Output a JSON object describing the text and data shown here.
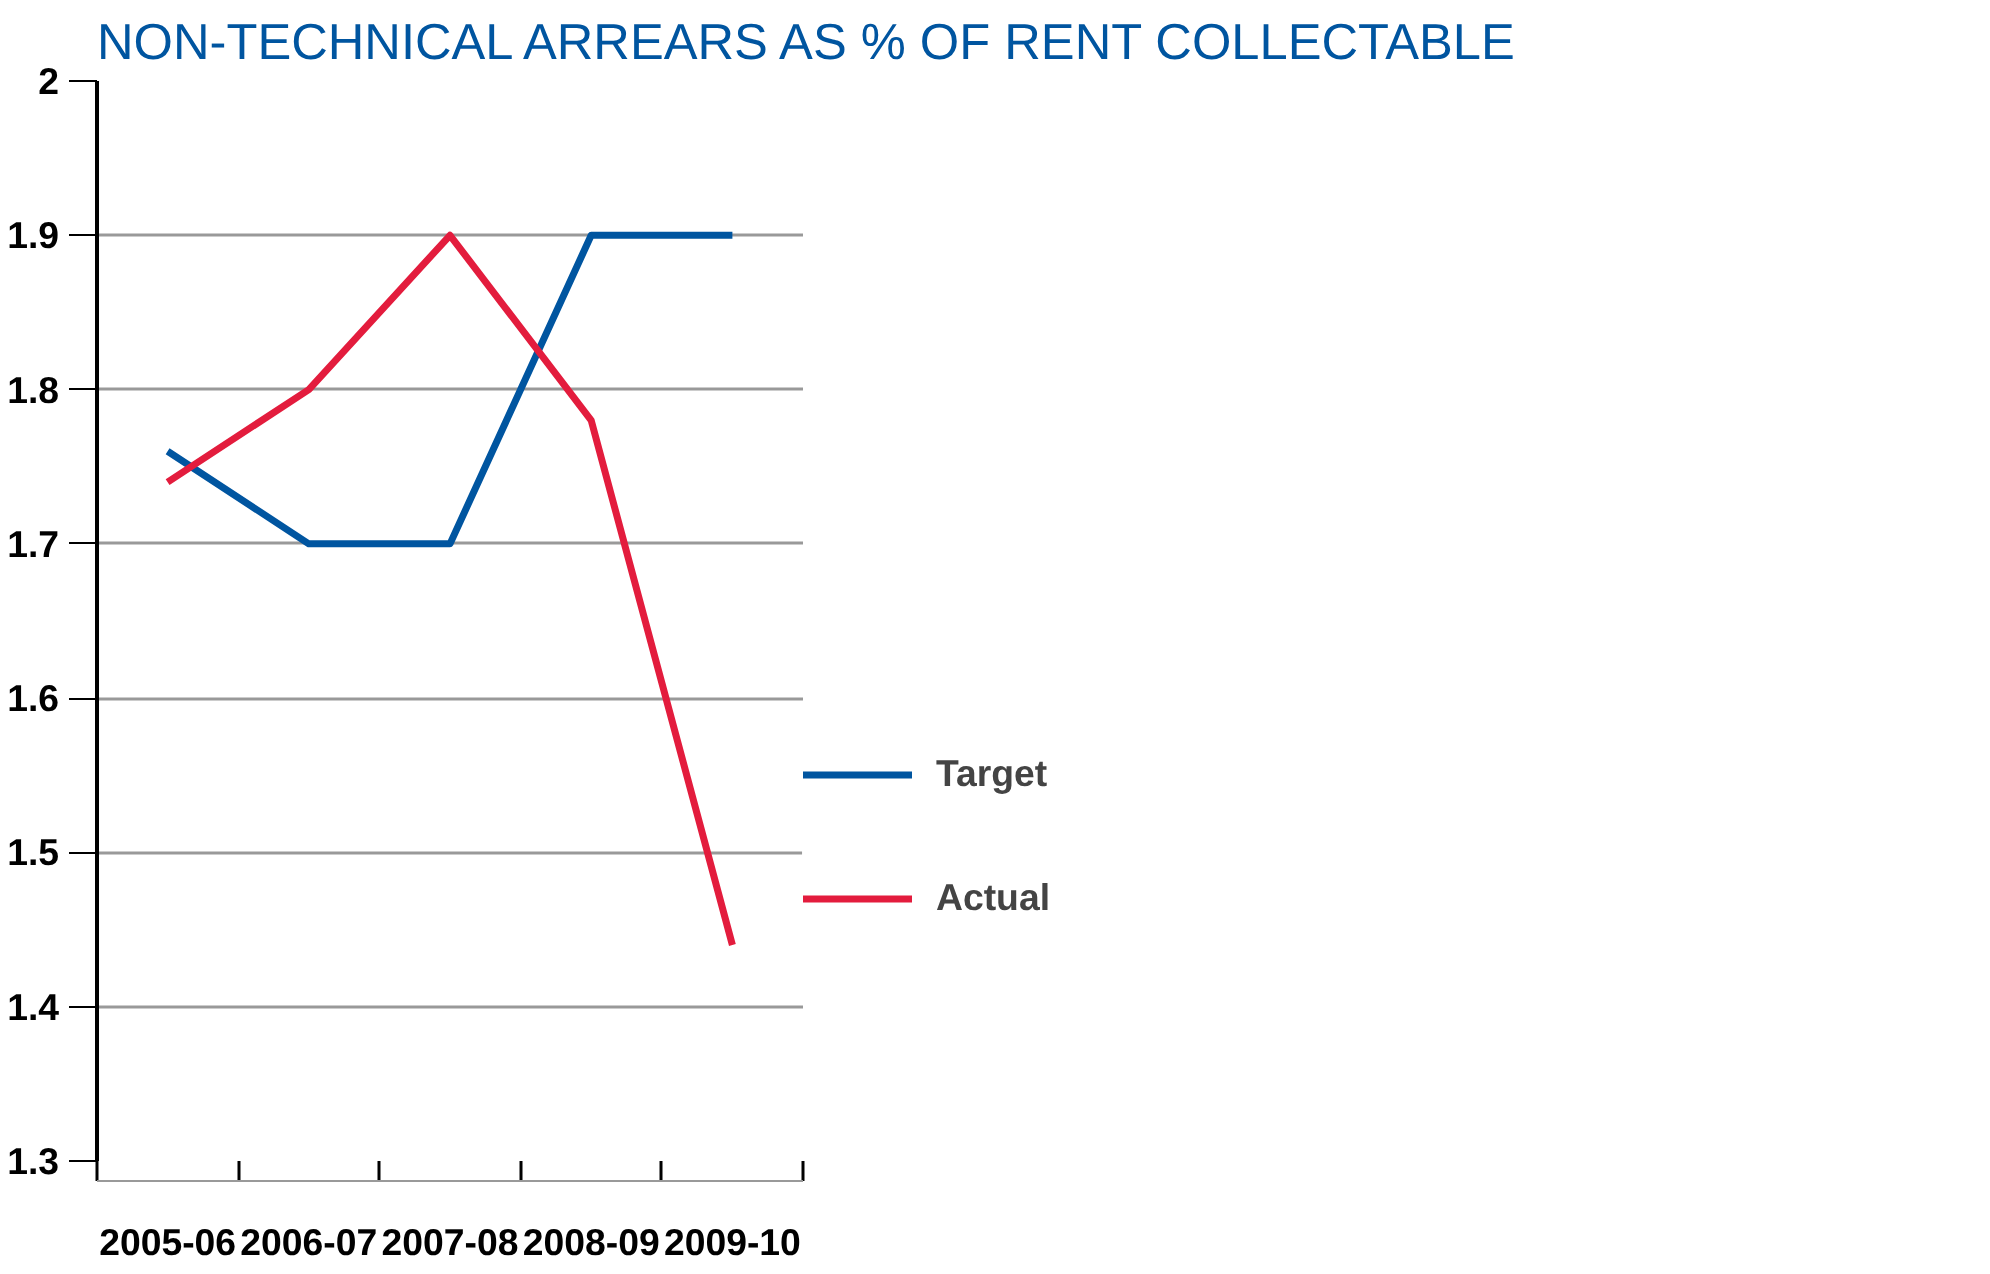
{
  "chart_data": {
    "type": "line",
    "title": "NON-TECHNICAL ARREARS AS % OF RENT COLLECTABLE",
    "categories": [
      "2005-06",
      "2006-07",
      "2007-08",
      "2008-09",
      "2009-10"
    ],
    "series": [
      {
        "name": "Target",
        "color": "#0055a0",
        "values": [
          1.76,
          1.7,
          1.7,
          1.9,
          1.9
        ]
      },
      {
        "name": "Actual",
        "color": "#e31c3d",
        "values": [
          1.74,
          1.8,
          1.9,
          1.78,
          1.44
        ]
      }
    ],
    "ylim": [
      1.3,
      2
    ],
    "yticks": [
      1.3,
      1.4,
      1.5,
      1.6,
      1.7,
      1.8,
      1.9,
      2
    ],
    "grid": "y",
    "legend": "right",
    "line_style": "solid"
  }
}
